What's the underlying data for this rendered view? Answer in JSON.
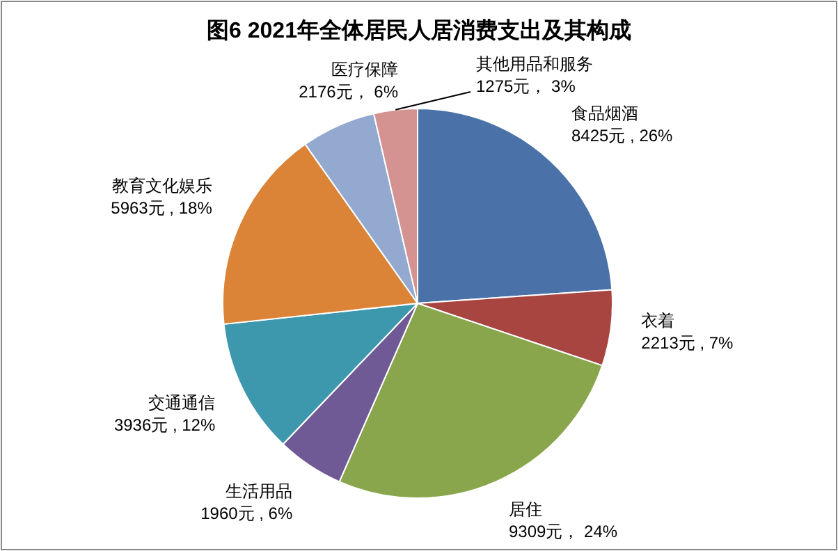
{
  "chart_data": {
    "type": "pie",
    "title": "图6  2021年全体居民人居消费支出及其构成",
    "categories": [
      "食品烟酒",
      "衣着",
      "居住",
      "生活用品",
      "交通通信",
      "教育文化娱乐",
      "医疗保障",
      "其他用品和服务"
    ],
    "values": [
      8425,
      2213,
      9309,
      1960,
      3936,
      5963,
      2176,
      1275
    ],
    "value_labels": [
      "8425元 , 26%",
      "2213元 , 7%",
      "9309元， 24%",
      "1960元 , 6%",
      "3936元 , 12%",
      "5963元 , 18%",
      "2176元， 6%",
      "1275元， 3%"
    ],
    "colors": [
      "#4a72a8",
      "#a84540",
      "#8aa64c",
      "#6f5a96",
      "#3d97ad",
      "#db8438",
      "#93a9cf",
      "#d49290"
    ],
    "legend": false
  }
}
